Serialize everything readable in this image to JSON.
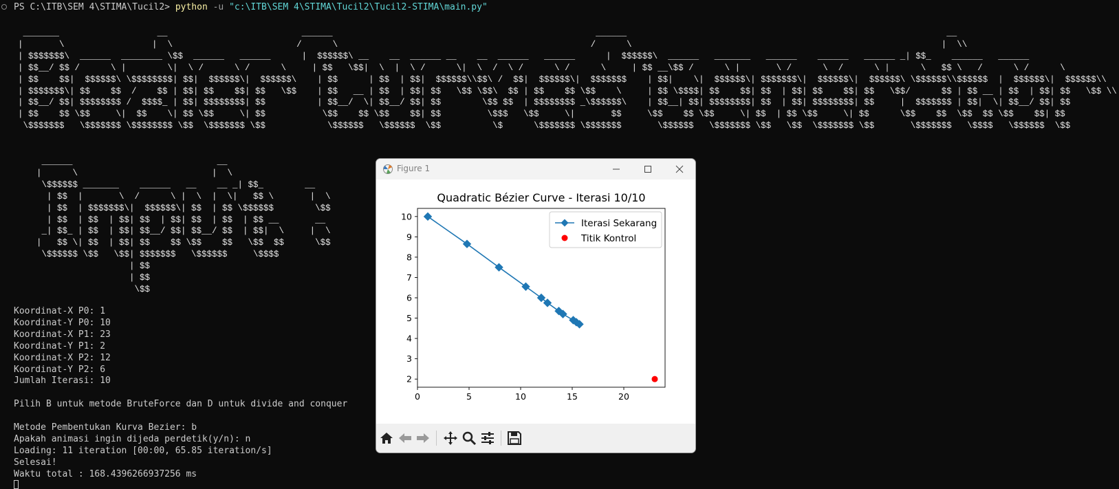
{
  "terminal": {
    "prompt": "PS C:\\ITB\\SEM 4\\STIMA\\Tucil2>",
    "cmd_exe": "python",
    "cmd_flag": "-u",
    "cmd_path": "\"c:\\ITB\\SEM 4\\STIMA\\Tucil2\\Tucil2-STIMA\\main.py\"",
    "banner_1": " _______                   __                          ______                                                   ______                                                              __   \n|       \\                 |  \\                        /      \\                                                 /      \\                                                            |  \\\\ \n| $$$$$$$\\  ______  ________ \\$$  ______   ______      |  $$$$$$\\ __    __  ______ __    __  ______   ______      |  $$$$$$\\  ______   _______   ______    ______   ______ _| $$_    ______   ______  \n| $$__/ $$ /      \\ |        \\|  \\ /      \\ /      \\     | $$   \\$$|  \\  |  \\ /      \\|  \\  /  \\ /      \\ /      \\     | $$ __\\$$ /      \\ |       \\ /      \\  /      \\ |      \\   $$ \\   /      \\ /      \\ \n| $$    $$|  $$$$$$\\ \\$$$$$$$$| $$|  $$$$$$\\|  $$$$$$\\    | $$      | $$  | $$|  $$$$$$\\\\$$\\ /  $$|  $$$$$$\\|  $$$$$$$    | $$|    \\|  $$$$$$\\| $$$$$$$\\|  $$$$$$\\|  $$$$$$\\ \\$$$$$$\\\\$$$$$$  |  $$$$$$\\|  $$$$$$\\\\\n| $$$$$$$\\| $$    $$  /    $$ | $$| $$    $$| $$   \\$$    | $$   __ | $$  | $$| $$   \\$$ \\$$\\  $$ | $$    $$ \\$$    \\     | $$ \\$$$$| $$    $$| $$  | $$| $$    $$| $$   \\$$/      $$ | $$ __ | $$  | $$| $$   \\$$ \\\\\n| $$__/ $$| $$$$$$$$ /  $$$$_ | $$| $$$$$$$$| $$          | $$__/  \\| $$__/ $$| $$        \\$$ $$  | $$$$$$$$ _\\$$$$$$\\    | $$__| $$| $$$$$$$$| $$  | $$| $$$$$$$$| $$     |  $$$$$$$ | $$|  \\| $$__/ $$| $$ \n| $$    $$ \\$$     \\|  $$    \\| $$ \\$$     \\| $$           \\$$    $$ \\$$    $$| $$         \\$$$   \\$$     \\|       $$     \\$$    $$ \\$$     \\| $$  | $$ \\$$     \\| $$      \\$$    $$  \\$$  $$ \\$$    $$| $$ \n \\$$$$$$$   \\$$$$$$$ \\$$$$$$$$ \\$$  \\$$$$$$$ \\$$            \\$$$$$$   \\$$$$$$  \\$$          \\$      \\$$$$$$$ \\$$$$$$$       \\$$$$$$   \\$$$$$$$ \\$$   \\$$  \\$$$$$$$ \\$$       \\$$$$$$$   \\$$$$   \\$$$$$$  \\$$ ",
    "banner_2": "   ______                            __      \n  |      \\                          |  \\     \n   \\$$$$$$ _______    ______   __    __ _| $$_        __  \n    | $$  |       \\  /      \\ |  \\  |  \\|   $$ \\       |  \\ \n    | $$  | $$$$$$$\\|  $$$$$$\\| $$  | $$ \\$$$$$$        \\$$ \n    | $$  | $$  | $$| $$  | $$| $$  | $$  | $$ __       __  \n   _| $$_ | $$  | $$| $$__/ $$| $$__/ $$  | $$|  \\     |  \\ \n  |   $$ \\| $$  | $$| $$    $$ \\$$    $$   \\$$  $$      \\$$ \n   \\$$$$$$ \\$$   \\$$| $$$$$$$   \\$$$$$$     \\$$$$            \n                    | $$                                  \n                    | $$                                  \n                     \\$$                                  ",
    "lines": [
      "Koordinat-X P0: 1",
      "Koordinat-Y P0: 10",
      "Koordinat-X P1: 23",
      "Koordinat-Y P1: 2",
      "Koordinat-X P2: 12",
      "Koordinat-Y P2: 6",
      "Jumlah Iterasi: 10",
      "",
      "Pilih B untuk metode BruteForce dan D untuk divide and conquer",
      "",
      "Metode Pembentukan Kurva Bezier: b",
      "Apakah animasi ingin dijeda perdetik(y/n): n",
      "Loading: 11 iteration [00:00, 65.85 iteration/s]",
      "Selesai!",
      "Waktu total : 168.4396266937256 ms"
    ]
  },
  "figure": {
    "window_title": "Figure 1",
    "icons": {
      "app": "matplotlib-icon",
      "minimize": "minimize-icon",
      "maximize": "maximize-icon",
      "close": "close-icon"
    },
    "toolbar": [
      "home-icon",
      "back-arrow-icon",
      "forward-arrow-icon",
      "move-icon",
      "zoom-icon",
      "configure-subplots-icon",
      "save-icon"
    ]
  },
  "chart_data": {
    "type": "line",
    "title": "Quadratic Bézier Curve - Iterasi 10/10",
    "xlim": [
      0,
      24
    ],
    "ylim": [
      1.6,
      10.4
    ],
    "xticks": [
      0,
      5,
      10,
      15,
      20
    ],
    "yticks": [
      2,
      3,
      4,
      5,
      6,
      7,
      8,
      9,
      10
    ],
    "legend_position": "upper right",
    "series": [
      {
        "name": "Iterasi Sekarang",
        "color": "#1f77b4",
        "marker": "diamond",
        "x": [
          1,
          4.8,
          7.9,
          10.5,
          12.0,
          12.6,
          13.7,
          14.1,
          15.1,
          15.4,
          15.7
        ],
        "y": [
          10,
          8.65,
          7.5,
          6.55,
          6.0,
          5.75,
          5.35,
          5.2,
          4.9,
          4.8,
          4.7
        ]
      },
      {
        "name": "Titik Kontrol",
        "color": "#ff0000",
        "marker": "circle",
        "x": [
          23
        ],
        "y": [
          2
        ]
      }
    ]
  }
}
